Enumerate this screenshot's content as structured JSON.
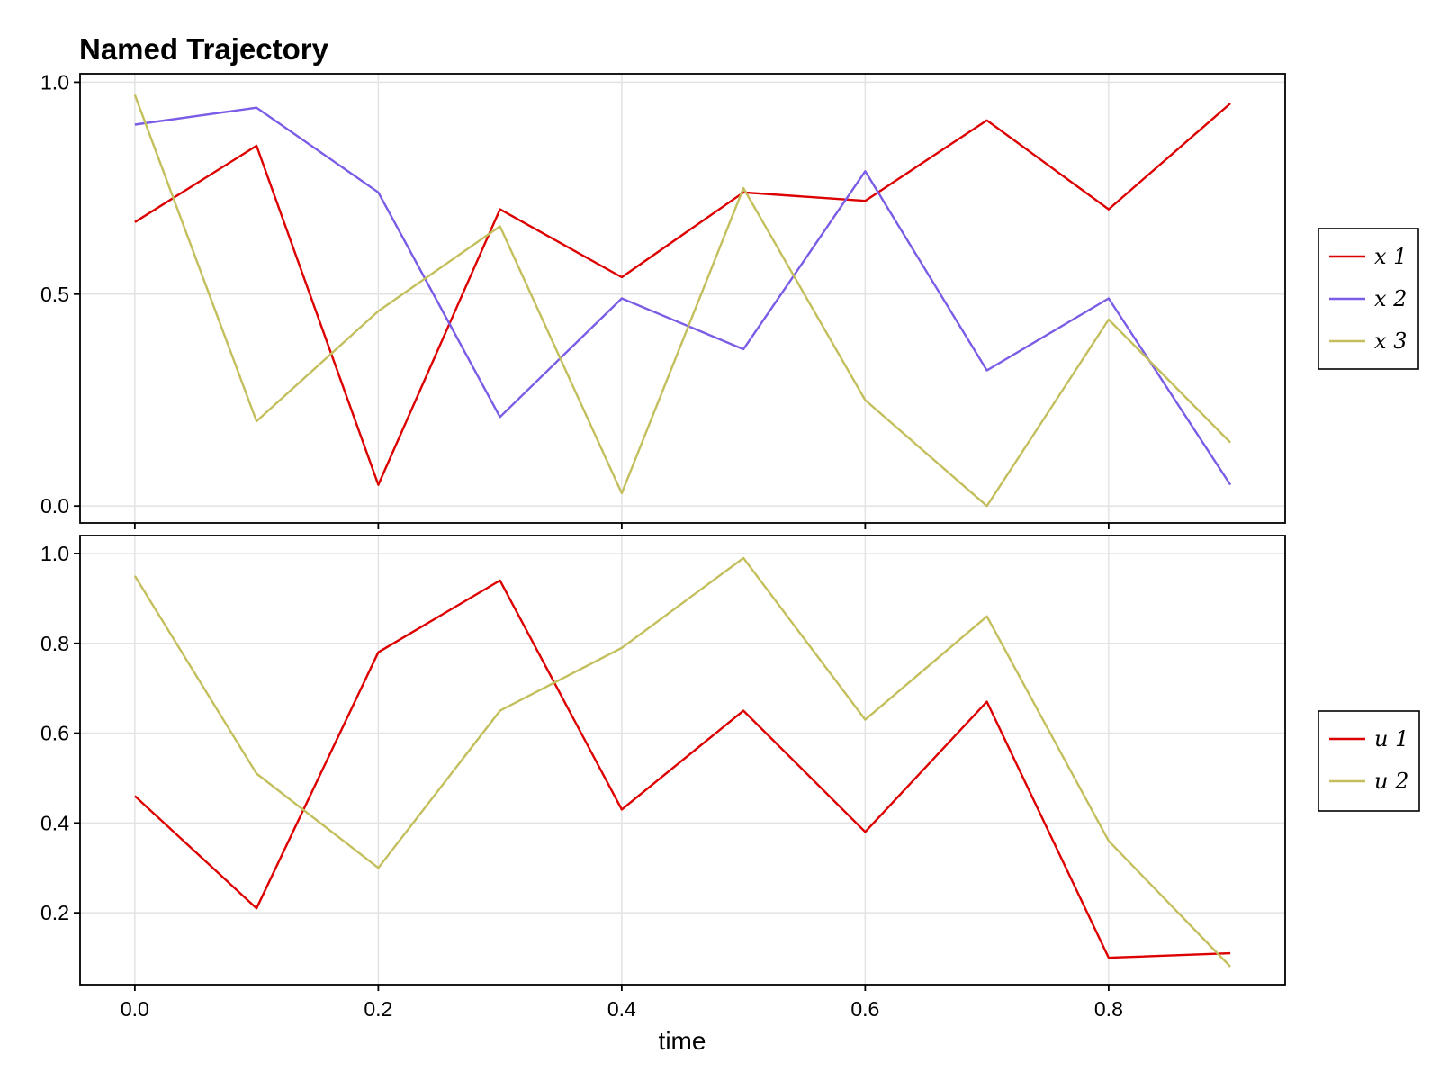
{
  "chart_data": [
    {
      "type": "line",
      "title": "Named Trajectory",
      "xlabel": "",
      "ylabel": "",
      "xlim": [
        -0.045,
        0.945
      ],
      "ylim": [
        -0.04,
        1.02
      ],
      "xticks": [
        0.0,
        0.2,
        0.4,
        0.6,
        0.8
      ],
      "yticks": [
        0.0,
        0.5,
        1.0
      ],
      "tick_labels_x": [],
      "tick_labels_y": [
        "0.0",
        "0.5",
        "1.0"
      ],
      "grid": true,
      "legend_position": "right",
      "x": [
        0.0,
        0.1,
        0.2,
        0.3,
        0.4,
        0.5,
        0.6,
        0.7,
        0.8,
        0.9
      ],
      "series": [
        {
          "name": "x 1",
          "color": "#dd0000",
          "values": [
            0.67,
            0.85,
            0.05,
            0.7,
            0.54,
            0.74,
            0.72,
            0.91,
            0.7,
            0.95
          ]
        },
        {
          "name": "x 2",
          "color": "#7b5ce6",
          "values": [
            0.9,
            0.94,
            0.74,
            0.21,
            0.49,
            0.37,
            0.79,
            0.32,
            0.49,
            0.05
          ]
        },
        {
          "name": "x 3",
          "color": "#c4bf5d",
          "values": [
            0.97,
            0.2,
            0.46,
            0.66,
            0.03,
            0.75,
            0.25,
            0.0,
            0.44,
            0.15
          ]
        }
      ]
    },
    {
      "type": "line",
      "title": "",
      "xlabel": "time",
      "ylabel": "",
      "xlim": [
        -0.045,
        0.945
      ],
      "ylim": [
        0.04,
        1.04
      ],
      "xticks": [
        0.0,
        0.2,
        0.4,
        0.6,
        0.8
      ],
      "yticks": [
        0.2,
        0.4,
        0.6,
        0.8,
        1.0
      ],
      "tick_labels_x": [
        "0.0",
        "0.2",
        "0.4",
        "0.6",
        "0.8"
      ],
      "tick_labels_y": [
        "0.2",
        "0.4",
        "0.6",
        "0.8",
        "1.0"
      ],
      "grid": true,
      "legend_position": "right",
      "x": [
        0.0,
        0.1,
        0.2,
        0.3,
        0.4,
        0.5,
        0.6,
        0.7,
        0.8,
        0.9
      ],
      "series": [
        {
          "name": "u 1",
          "color": "#dd0000",
          "values": [
            0.46,
            0.21,
            0.78,
            0.94,
            0.43,
            0.65,
            0.38,
            0.67,
            0.1,
            0.11
          ]
        },
        {
          "name": "u 2",
          "color": "#c4bf5d",
          "values": [
            0.95,
            0.51,
            0.3,
            0.65,
            0.79,
            0.99,
            0.63,
            0.86,
            0.36,
            0.08
          ]
        }
      ]
    }
  ]
}
